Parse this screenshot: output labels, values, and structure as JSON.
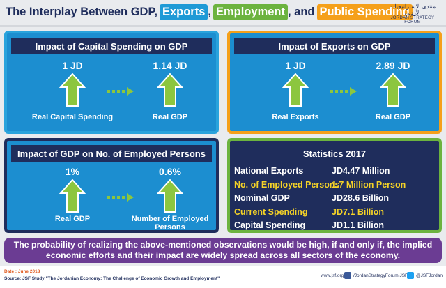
{
  "header": {
    "title_parts": [
      "The Interplay Between GDP,",
      "Exports",
      ",",
      "Employment",
      ", and",
      "Public Spending"
    ],
    "logo_arabic": "منتدى الاستراتيجيات الأردني",
    "logo_english": "JORDAN STRATEGY FORUM"
  },
  "panels": [
    {
      "title": "Impact of Capital Spending on GDP",
      "from_value": "1 JD",
      "to_value": "1.14 JD",
      "from_label": "Real Capital Spending",
      "to_label": "Real GDP"
    },
    {
      "title": "Impact of Exports on GDP",
      "from_value": "1 JD",
      "to_value": "2.89 JD",
      "from_label": "Real Exports",
      "to_label": "Real GDP"
    },
    {
      "title": "Impact of GDP on No. of Employed Persons",
      "from_value": "1%",
      "to_value": "0.6%",
      "from_label": "Real GDP",
      "to_label": "Number of Employed Persons"
    }
  ],
  "statistics": {
    "title": "Statistics 2017",
    "rows": [
      [
        "National Exports",
        "JD4.47 Million"
      ],
      [
        "No. of Employed Persons",
        "1.7 Million Person"
      ],
      [
        "Nominal GDP",
        "JD28.6 Billion"
      ],
      [
        "Current Spending",
        "JD7.1 Billion"
      ],
      [
        "Capital Spending",
        "JD1.1 Billion"
      ]
    ]
  },
  "note": "The probability of realizing the above-mentioned observations would be high, if and only if, the implied economic efforts and their impact are widely spread across all sectors of the economy.",
  "footer": {
    "date": "Date : June 2018",
    "source": "Source: JSF Study \"The Jordanian Economy: The Challenge of Economic Growth and Employment\"",
    "website": "www.jsf.org",
    "facebook": "/JordanStrategyForum.JSF",
    "twitter": "@JSFJordan"
  }
}
